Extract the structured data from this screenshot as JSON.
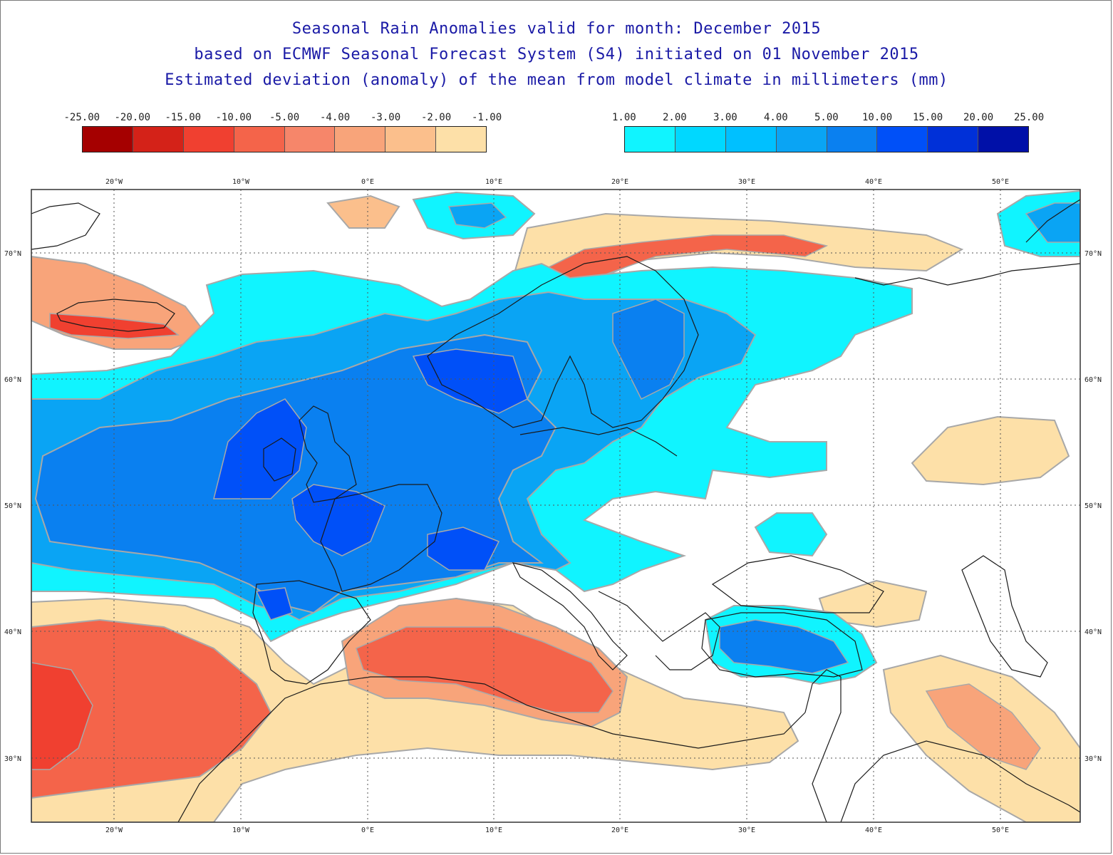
{
  "titles": {
    "line1": "Seasonal Rain Anomalies valid for month: December 2015",
    "line2": "based on ECMWF Seasonal Forecast System (S4) initiated on 01 November 2015",
    "line3": "Estimated deviation (anomaly) of the mean from model climate in millimeters (mm)"
  },
  "legend_negative": {
    "labels": [
      "-25.00",
      "-20.00",
      "-15.00",
      "-10.00",
      "-5.00",
      "-4.00",
      "-3.00",
      "-2.00",
      "-1.00"
    ],
    "colors": [
      "#a50000",
      "#d42218",
      "#f04030",
      "#f4644a",
      "#f6866a",
      "#f8a47a",
      "#fbbf8c",
      "#fde0a8"
    ]
  },
  "legend_positive": {
    "labels": [
      "1.00",
      "2.00",
      "3.00",
      "4.00",
      "5.00",
      "10.00",
      "15.00",
      "20.00",
      "25.00"
    ],
    "colors": [
      "#10f4ff",
      "#00d8ff",
      "#00c0ff",
      "#0aa4f4",
      "#0a80f0",
      "#0050f8",
      "#0030d8",
      "#0010a8"
    ]
  },
  "map": {
    "lon_labels": [
      "20°W",
      "10°W",
      "0°E",
      "10°E",
      "20°E",
      "30°E",
      "40°E",
      "50°E"
    ],
    "lat_labels": [
      "70°N",
      "60°N",
      "50°N",
      "40°N",
      "30°N"
    ],
    "colors": {
      "dry_light": "#fde0a8",
      "dry_mid": "#f8a47a",
      "dry_strong": "#f4644a",
      "dry_stronger": "#f04030",
      "wet_light": "#10f4ff",
      "wet_mid": "#0aa4f4",
      "wet_strong": "#0a80f0",
      "wet_stronger": "#0050f8",
      "contour": "#a8a8a8",
      "coast": "#1a1a1a",
      "grid": "#555555"
    }
  }
}
